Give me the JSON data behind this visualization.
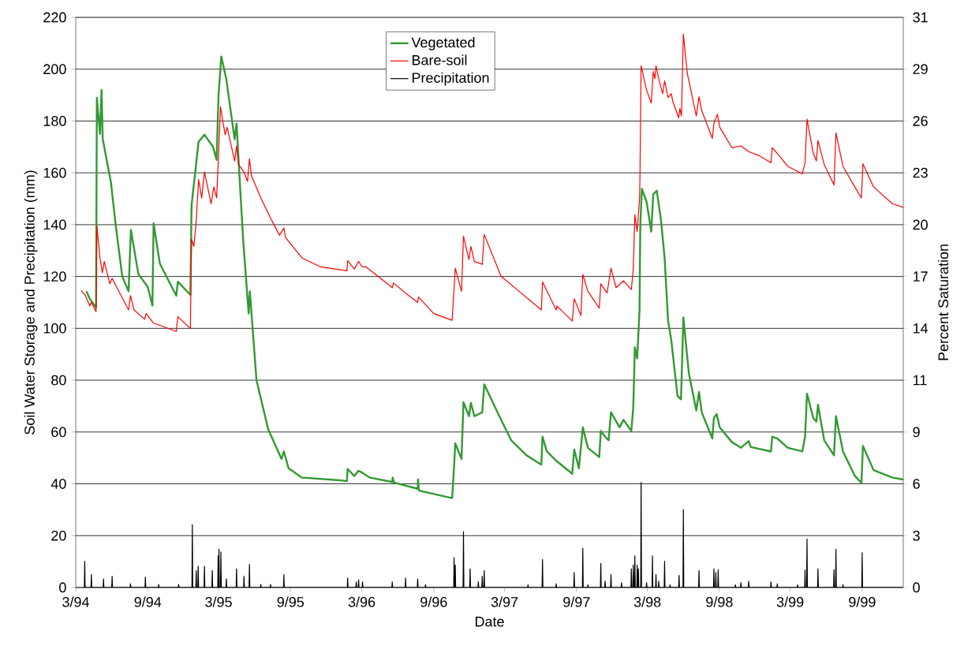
{
  "chart_data": {
    "type": "line",
    "xlabel": "Date",
    "ylabel": "Soil Water Storage and Precipitation (mm)",
    "y2label": "Percent Saturation",
    "xlim": [
      "1994-03-01",
      "1999-12-15"
    ],
    "xticks": [
      {
        "value": "1994-03-01",
        "label": "3/94"
      },
      {
        "value": "1994-09-01",
        "label": "9/94"
      },
      {
        "value": "1995-03-01",
        "label": "3/95"
      },
      {
        "value": "1995-09-01",
        "label": "9/95"
      },
      {
        "value": "1996-03-01",
        "label": "3/96"
      },
      {
        "value": "1996-09-01",
        "label": "9/96"
      },
      {
        "value": "1997-03-01",
        "label": "3/97"
      },
      {
        "value": "1997-09-01",
        "label": "9/97"
      },
      {
        "value": "1998-03-01",
        "label": "3/98"
      },
      {
        "value": "1998-09-01",
        "label": "9/98"
      },
      {
        "value": "1999-03-01",
        "label": "3/99"
      },
      {
        "value": "1999-09-01",
        "label": "9/99"
      }
    ],
    "ylim": [
      0,
      220
    ],
    "yticks": [
      0,
      20,
      40,
      60,
      80,
      100,
      120,
      140,
      160,
      180,
      200,
      220
    ],
    "y2lim": [
      0,
      31.4
    ],
    "y2ticks": [
      0,
      {
        "value": 2.85,
        "label": "3"
      },
      {
        "value": 5.71,
        "label": "6"
      },
      {
        "value": 8.56,
        "label": "9"
      },
      {
        "value": 11.42,
        "label": "11"
      },
      {
        "value": 14.27,
        "label": "14"
      },
      {
        "value": 17.13,
        "label": "17"
      },
      {
        "value": 19.98,
        "label": "20"
      },
      {
        "value": 22.84,
        "label": "23"
      },
      {
        "value": 25.69,
        "label": "26"
      },
      {
        "value": 28.55,
        "label": "29"
      },
      {
        "value": 31.4,
        "label": "31"
      }
    ],
    "grid": "y",
    "legend": "top",
    "series": [
      {
        "name": "Vegetated",
        "color": "#339933",
        "x": [
          "1994-03-28",
          "1994-04-06",
          "1994-04-22",
          "1994-04-24",
          "1994-05-02",
          "1994-05-06",
          "1994-05-09",
          "1994-05-30",
          "1994-06-11",
          "1994-06-28",
          "1994-07-14",
          "1994-07-20",
          "1994-08-08",
          "1994-09-01",
          "1994-09-13",
          "1994-09-16",
          "1994-10-02",
          "1994-11-13",
          "1994-11-17",
          "1994-12-19",
          "1994-12-22",
          "1995-01-09",
          "1995-01-24",
          "1995-02-15",
          "1995-02-24",
          "1995-03-01",
          "1995-03-08",
          "1995-03-21",
          "1995-04-11",
          "1995-04-16",
          "1995-04-23",
          "1995-05-03",
          "1995-05-17",
          "1995-05-20",
          "1995-06-06",
          "1995-07-06",
          "1995-08-09",
          "1995-08-15",
          "1995-08-27",
          "1995-09-30",
          "1996-01-04",
          "1996-01-23",
          "1996-01-25",
          "1996-02-11",
          "1996-02-21",
          "1996-02-28",
          "1996-03-22",
          "1996-05-18",
          "1996-05-19",
          "1996-05-22",
          "1996-07-22",
          "1996-07-23",
          "1996-07-25",
          "1996-10-18",
          "1996-10-23",
          "1996-10-26",
          "1996-11-11",
          "1996-11-16",
          "1996-11-30",
          "1996-12-05",
          "1996-12-14",
          "1997-01-03",
          "1997-01-08",
          "1997-02-20",
          "1997-03-18",
          "1997-04-26",
          "1997-06-03",
          "1997-06-06",
          "1997-06-17",
          "1997-07-11",
          "1997-08-21",
          "1997-08-26",
          "1997-09-07",
          "1997-09-17",
          "1997-09-30",
          "1997-10-29",
          "1997-11-02",
          "1997-11-13",
          "1997-11-22",
          "1997-11-28",
          "1997-12-20",
          "1997-12-30",
          "1998-01-19",
          "1998-01-24",
          "1998-01-28",
          "1998-02-03",
          "1998-02-09",
          "1998-02-11",
          "1998-02-15",
          "1998-02-27",
          "1998-03-11",
          "1998-03-16",
          "1998-03-25",
          "1998-04-05",
          "1998-04-14",
          "1998-04-23",
          "1998-05-01",
          "1998-05-17",
          "1998-05-26",
          "1998-06-01",
          "1998-06-15",
          "1998-07-04",
          "1998-07-11",
          "1998-07-18",
          "1998-08-14",
          "1998-08-18",
          "1998-08-25",
          "1998-09-02",
          "1998-10-03",
          "1998-10-26",
          "1998-11-15",
          "1998-11-20",
          "1999-01-11",
          "1999-01-14",
          "1999-01-27",
          "1999-02-23",
          "1999-04-01",
          "1999-04-08",
          "1999-04-13",
          "1999-04-29",
          "1999-05-07",
          "1999-05-11",
          "1999-05-27",
          "1999-06-21",
          "1999-06-26",
          "1999-07-14",
          "1999-08-13",
          "1999-08-30",
          "1999-09-03",
          "1999-09-30",
          "1999-11-17",
          "1999-12-15"
        ],
        "values": [
          114.3,
          111.4,
          108,
          189,
          175,
          192,
          173,
          156.3,
          140,
          120,
          114.3,
          138,
          121,
          116,
          108.8,
          140.5,
          125,
          112.6,
          118,
          112.9,
          147.4,
          172,
          174.7,
          170,
          165,
          190,
          204.9,
          196,
          173,
          179,
          160,
          134,
          105.7,
          114.3,
          80,
          61,
          49.6,
          52.5,
          46,
          42.4,
          41.4,
          41,
          45.7,
          43,
          45,
          44.6,
          42.4,
          40.7,
          42.4,
          40.5,
          38.1,
          41.7,
          37.4,
          34.5,
          46.7,
          55.6,
          49.6,
          71.5,
          66.1,
          71.2,
          66.1,
          67.6,
          78.4,
          64.7,
          56.8,
          51,
          47.4,
          58.2,
          52.5,
          48.9,
          43.9,
          53.2,
          46,
          61.8,
          53.9,
          50.3,
          60.4,
          58.2,
          56.8,
          67.6,
          61.8,
          64.7,
          60.4,
          69.7,
          92.7,
          88.4,
          107.1,
          140.2,
          153.8,
          148.8,
          137.3,
          151.7,
          153.1,
          141.6,
          127.2,
          102.8,
          95.6,
          74,
          72.6,
          104.2,
          82.7,
          68.3,
          75.5,
          67.6,
          57.5,
          65.4,
          66.9,
          61.8,
          56.1,
          53.9,
          56.5,
          54.2,
          52.5,
          58.2,
          57.5,
          53.9,
          52.5,
          58.2,
          74.8,
          65.4,
          64,
          70.5,
          56.8,
          51,
          66.1,
          52.5,
          43.1,
          40.3,
          54.6,
          45.3,
          42.4,
          41.7
        ]
      },
      {
        "name": "Bare-soil",
        "color": "#ff0000",
        "x": [
          "1994-03-15",
          "1994-03-26",
          "1994-04-06",
          "1994-04-10",
          "1994-04-22",
          "1994-04-24",
          "1994-05-02",
          "1994-05-08",
          "1994-05-13",
          "1994-05-27",
          "1994-06-02",
          "1994-07-14",
          "1994-07-19",
          "1994-07-28",
          "1994-08-24",
          "1994-08-28",
          "1994-09-15",
          "1994-11-13",
          "1994-11-17",
          "1994-12-19",
          "1994-12-22",
          "1994-12-28",
          "1995-01-03",
          "1995-01-09",
          "1995-01-17",
          "1995-01-24",
          "1995-02-10",
          "1995-02-17",
          "1995-02-24",
          "1995-02-28",
          "1995-03-06",
          "1995-03-13",
          "1995-03-18",
          "1995-03-23",
          "1995-04-11",
          "1995-04-16",
          "1995-04-21",
          "1995-05-05",
          "1995-05-14",
          "1995-05-19",
          "1995-05-24",
          "1995-06-17",
          "1995-07-15",
          "1995-08-04",
          "1995-08-15",
          "1995-08-19",
          "1995-09-30",
          "1995-11-17",
          "1996-01-23",
          "1996-01-25",
          "1996-02-11",
          "1996-02-22",
          "1996-03-02",
          "1996-03-12",
          "1996-04-11",
          "1996-05-18",
          "1996-05-21",
          "1996-06-21",
          "1996-07-22",
          "1996-07-24",
          "1996-09-01",
          "1996-10-18",
          "1996-10-23",
          "1996-10-26",
          "1996-11-11",
          "1996-11-16",
          "1996-11-30",
          "1996-12-05",
          "1996-12-14",
          "1997-01-03",
          "1997-01-08",
          "1997-02-20",
          "1997-04-07",
          "1997-06-03",
          "1997-06-06",
          "1997-07-11",
          "1997-07-13",
          "1997-08-21",
          "1997-08-26",
          "1997-09-12",
          "1997-09-17",
          "1997-09-30",
          "1997-10-29",
          "1997-11-02",
          "1997-11-18",
          "1997-11-28",
          "1997-12-11",
          "1997-12-30",
          "1998-01-19",
          "1998-01-24",
          "1998-01-28",
          "1998-02-03",
          "1998-02-09",
          "1998-02-10",
          "1998-02-13",
          "1998-02-27",
          "1998-03-11",
          "1998-03-16",
          "1998-03-20",
          "1998-03-23",
          "1998-03-30",
          "1998-04-09",
          "1998-04-14",
          "1998-04-23",
          "1998-05-01",
          "1998-05-05",
          "1998-05-20",
          "1998-05-23",
          "1998-05-27",
          "1998-06-01",
          "1998-06-11",
          "1998-07-04",
          "1998-07-11",
          "1998-07-18",
          "1998-08-14",
          "1998-08-18",
          "1998-08-27",
          "1998-09-02",
          "1998-10-03",
          "1998-10-26",
          "1998-11-15",
          "1998-12-09",
          "1999-01-11",
          "1999-01-14",
          "1999-01-27",
          "1999-02-23",
          "1999-04-01",
          "1999-04-08",
          "1999-04-13",
          "1999-04-29",
          "1999-05-07",
          "1999-05-11",
          "1999-05-27",
          "1999-06-21",
          "1999-06-26",
          "1999-07-14",
          "1999-08-13",
          "1999-08-30",
          "1999-09-03",
          "1999-09-30",
          "1999-11-17",
          "1999-12-15"
        ],
        "values": [
          114.6,
          112.6,
          108.6,
          110,
          106.4,
          139.5,
          127.2,
          121.5,
          125.8,
          117.2,
          119.3,
          107.1,
          112.6,
          107.1,
          103.5,
          105.7,
          102.1,
          98.8,
          104.5,
          99.9,
          134.4,
          131.6,
          141.6,
          157.4,
          150.3,
          160.3,
          148.1,
          154.6,
          150.3,
          163.2,
          185.5,
          179,
          174.7,
          177.6,
          164.6,
          170.4,
          163.2,
          160.3,
          156.7,
          165.4,
          158.9,
          150.3,
          141.6,
          135.9,
          138.7,
          135.1,
          127.2,
          123.7,
          122.2,
          126.1,
          122.9,
          125.8,
          123.7,
          123.7,
          120.1,
          115.7,
          117.5,
          113.6,
          110,
          112.1,
          105.7,
          103.1,
          115.7,
          123.2,
          114.3,
          135.6,
          126.5,
          131.6,
          125.8,
          124.7,
          136.2,
          120.1,
          114.3,
          107.1,
          117.9,
          107.1,
          108.6,
          102.8,
          111.4,
          105,
          120.8,
          114.3,
          107.8,
          117.2,
          113.6,
          123.2,
          115.7,
          118.3,
          115,
          122.9,
          143.8,
          137.3,
          150.3,
          157.4,
          201.3,
          191.9,
          186.9,
          199.1,
          196.3,
          201.3,
          196.3,
          190.5,
          195.5,
          189.1,
          190.5,
          187.6,
          181.2,
          184.8,
          181.9,
          213.5,
          198.4,
          181.9,
          189.4,
          184,
          173.3,
          179,
          182.6,
          177.6,
          169.7,
          170.4,
          168.2,
          166.8,
          163.9,
          169.7,
          167.5,
          162.5,
          159.6,
          163.9,
          180.7,
          167.5,
          164.6,
          172.5,
          163.2,
          155.3,
          175.4,
          162.5,
          154.6,
          150.3,
          163.5,
          154.6,
          148.1,
          146.7
        ]
      },
      {
        "name": "Precipitation",
        "color": "#000000",
        "x": [
          "1994-03-23",
          "1994-03-24",
          "1994-03-25",
          "1994-04-09",
          "1994-04-10",
          "1994-04-11",
          "1994-05-10",
          "1994-05-11",
          "1994-05-12",
          "1994-06-01",
          "1994-06-02",
          "1994-06-03",
          "1994-07-18",
          "1994-07-19",
          "1994-07-20",
          "1994-08-25",
          "1994-08-26",
          "1994-08-27",
          "1994-09-28",
          "1994-09-29",
          "1994-09-30",
          "1994-11-18",
          "1994-11-19",
          "1994-11-20",
          "1994-12-23",
          "1994-12-24",
          "1994-12-25",
          "1995-01-02",
          "1995-01-03",
          "1995-01-04",
          "1995-01-07",
          "1995-01-08",
          "1995-01-09",
          "1995-01-23",
          "1995-01-24",
          "1995-01-25",
          "1995-02-12",
          "1995-02-13",
          "1995-02-14",
          "1995-02-27",
          "1995-02-28",
          "1995-03-01",
          "1995-03-02",
          "1995-03-03",
          "1995-03-06",
          "1995-03-07",
          "1995-03-08",
          "1995-03-20",
          "1995-03-21",
          "1995-03-22",
          "1995-04-15",
          "1995-04-16",
          "1995-04-17",
          "1995-05-04",
          "1995-05-05",
          "1995-05-06",
          "1995-05-18",
          "1995-05-19",
          "1995-05-20",
          "1995-06-16",
          "1995-06-17",
          "1995-06-18",
          "1995-07-11",
          "1995-07-12",
          "1995-07-13",
          "1995-08-14",
          "1995-08-15",
          "1995-08-16",
          "1996-01-24",
          "1996-01-25",
          "1996-01-26",
          "1996-02-15",
          "1996-02-16",
          "1996-02-17",
          "1996-02-21",
          "1996-02-22",
          "1996-02-23",
          "1996-03-02",
          "1996-03-03",
          "1996-03-04",
          "1996-05-17",
          "1996-05-18",
          "1996-05-19",
          "1996-06-20",
          "1996-06-21",
          "1996-06-22",
          "1996-07-21",
          "1996-07-22",
          "1996-07-23",
          "1996-08-10",
          "1996-08-11",
          "1996-08-12",
          "1996-10-22",
          "1996-10-23",
          "1996-10-24",
          "1996-10-25",
          "1996-10-26",
          "1996-10-27",
          "1996-11-15",
          "1996-11-16",
          "1996-11-17",
          "1996-12-02",
          "1996-12-03",
          "1996-12-04",
          "1996-12-23",
          "1996-12-24",
          "1996-12-25",
          "1997-01-02",
          "1997-01-03",
          "1997-01-04",
          "1997-01-07",
          "1997-01-08",
          "1997-01-09",
          "1997-04-29",
          "1997-04-30",
          "1997-05-01",
          "1997-06-05",
          "1997-06-06",
          "1997-06-07",
          "1997-07-10",
          "1997-07-11",
          "1997-07-12",
          "1997-08-25",
          "1997-08-26",
          "1997-08-27",
          "1997-09-16",
          "1997-09-17",
          "1997-09-18",
          "1997-09-29",
          "1997-09-30",
          "1997-10-01",
          "1997-11-01",
          "1997-11-02",
          "1997-11-03",
          "1997-11-12",
          "1997-11-13",
          "1997-11-14",
          "1997-11-27",
          "1997-11-28",
          "1997-11-29",
          "1997-12-24",
          "1997-12-25",
          "1997-12-26",
          "1998-01-18",
          "1998-01-19",
          "1998-01-20",
          "1998-01-23",
          "1998-01-24",
          "1998-01-25",
          "1998-01-27",
          "1998-01-28",
          "1998-01-29",
          "1998-02-02",
          "1998-02-03",
          "1998-02-04",
          "1998-02-05",
          "1998-02-06",
          "1998-02-07",
          "1998-02-12",
          "1998-02-13",
          "1998-02-14",
          "1998-02-26",
          "1998-02-27",
          "1998-02-28",
          "1998-03-13",
          "1998-03-14",
          "1998-03-15",
          "1998-03-22",
          "1998-03-23",
          "1998-03-24",
          "1998-03-29",
          "1998-03-30",
          "1998-03-31",
          "1998-04-13",
          "1998-04-14",
          "1998-04-15",
          "1998-04-27",
          "1998-04-28",
          "1998-04-29",
          "1998-05-20",
          "1998-05-21",
          "1998-05-22",
          "1998-05-31",
          "1998-06-01",
          "1998-06-02",
          "1998-07-10",
          "1998-07-11",
          "1998-07-12",
          "1998-08-17",
          "1998-08-18",
          "1998-08-19",
          "1998-08-22",
          "1998-08-23",
          "1998-08-24",
          "1998-08-28",
          "1998-08-29",
          "1998-08-30",
          "1998-10-11",
          "1998-10-12",
          "1998-10-13",
          "1998-10-25",
          "1998-10-26",
          "1998-10-27",
          "1998-11-14",
          "1998-11-15",
          "1998-11-16",
          "1999-01-10",
          "1999-01-11",
          "1999-01-12",
          "1999-01-26",
          "1999-01-27",
          "1999-01-28",
          "1999-03-19",
          "1999-03-20",
          "1999-03-21",
          "1999-04-07",
          "1999-04-08",
          "1999-04-09",
          "1999-04-12",
          "1999-04-13",
          "1999-04-14",
          "1999-05-10",
          "1999-05-11",
          "1999-05-12",
          "1999-06-20",
          "1999-06-21",
          "1999-06-22",
          "1999-06-25",
          "1999-06-26",
          "1999-06-27",
          "1999-07-13",
          "1999-07-14",
          "1999-07-15",
          "1999-08-31",
          "1999-09-01",
          "1999-09-02",
          "1999-12-15"
        ],
        "values": [
          0,
          10.1,
          0,
          0,
          5,
          0,
          0,
          3.3,
          0,
          0,
          4.3,
          0,
          0,
          1.4,
          0,
          0,
          4,
          0,
          0,
          1.2,
          0,
          0,
          1.2,
          0,
          0,
          24.2,
          0,
          0,
          6.5,
          0,
          0,
          8.2,
          0,
          0,
          8.2,
          0,
          0,
          6.5,
          0,
          0,
          12.2,
          0,
          14.8,
          0,
          0,
          13.7,
          0,
          0,
          3.3,
          0,
          0,
          7.2,
          0,
          0,
          4.3,
          0,
          0,
          8.9,
          0,
          0,
          1.2,
          0,
          0,
          1.2,
          0,
          0,
          5,
          0,
          0,
          3.6,
          0,
          0,
          2.2,
          0,
          0,
          2.9,
          0,
          0,
          2.2,
          0,
          0,
          2.2,
          0,
          0,
          3.6,
          0,
          0,
          3.3,
          0,
          0,
          1,
          0,
          0,
          11.5,
          0,
          0,
          8.6,
          0,
          0,
          21.6,
          0,
          0,
          7.2,
          0,
          0,
          2.2,
          0,
          0,
          4.3,
          0,
          0,
          6.5,
          0,
          0,
          1,
          0,
          0,
          10.8,
          0,
          0,
          1.4,
          0,
          0,
          5.8,
          0,
          0,
          15.1,
          0,
          0,
          1,
          0,
          0,
          9.3,
          0,
          0,
          2.5,
          0,
          0,
          5,
          0,
          0,
          1.9,
          0,
          0,
          7.2,
          0,
          0,
          8.6,
          0,
          0,
          12.2,
          0,
          0,
          8.6,
          0,
          0,
          7.2,
          0,
          0,
          40.5,
          0,
          0,
          1.9,
          0,
          0,
          12.2,
          0,
          0,
          5,
          0,
          0,
          2.4,
          0,
          0,
          10.1,
          0,
          0,
          1,
          0,
          0,
          4.7,
          0,
          0,
          30.1,
          0,
          0,
          6.5,
          0,
          0,
          7.2,
          0,
          0,
          5.8,
          0,
          0,
          6.8,
          0,
          0,
          1,
          0,
          0,
          1.9,
          0,
          0,
          2.4,
          0,
          0,
          2.2,
          0,
          0,
          1.4,
          0,
          0,
          1,
          0,
          0,
          6.8,
          0,
          0,
          18.7,
          0,
          0,
          7.2,
          0,
          0,
          6.9,
          0,
          0,
          14.7,
          0,
          0,
          1,
          0,
          0,
          13.4,
          0,
          0
        ]
      }
    ]
  }
}
